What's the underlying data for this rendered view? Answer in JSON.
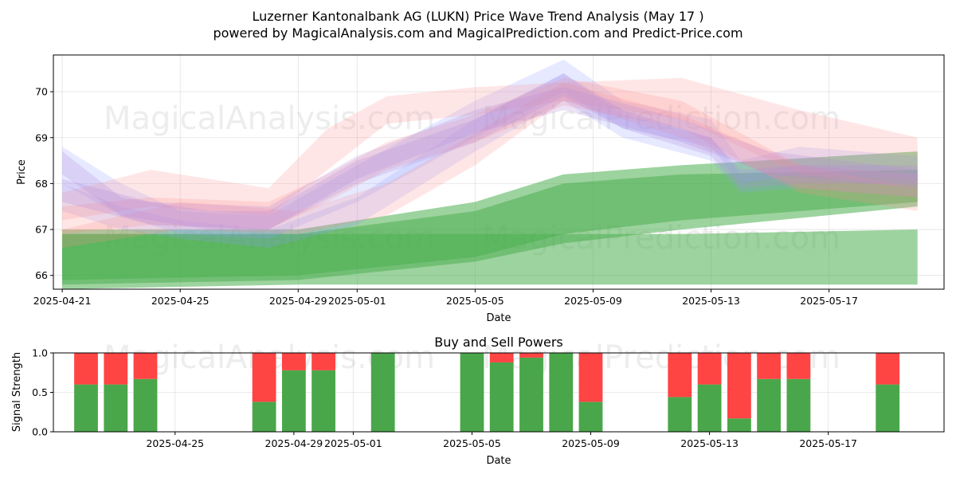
{
  "header": {
    "title": "Luzerner Kantonalbank AG (LUKN) Price Wave Trend Analysis (May 17 )",
    "subtitle": "powered by MagicalAnalysis.com and MagicalPrediction.com and Predict-Price.com"
  },
  "watermarks": [
    "MagicalAnalysis.com",
    "MagicalPrediction.com",
    "MagicalAnalysis.com",
    "MagicalPrediction.com",
    "MagicalAnalysis.com",
    "MagicalPrediction.com"
  ],
  "colors": {
    "buy": "#4aa64a",
    "sell": "#ff4444",
    "green_band": "#4caf50",
    "blue_band": "#8c9cff",
    "red_band": "#ff8c8c",
    "purple_band": "#b48cdc"
  },
  "chart_data": [
    {
      "type": "area",
      "title": "",
      "xlabel": "Date",
      "ylabel": "Price",
      "ylim": [
        65.7,
        70.8
      ],
      "xlim": [
        "2025-04-20.7",
        "2025-05-20.9"
      ],
      "grid": true,
      "x_ticks": [
        "2025-04-21",
        "2025-04-25",
        "2025-04-29",
        "2025-05-01",
        "2025-05-05",
        "2025-05-09",
        "2025-05-13",
        "2025-05-17"
      ],
      "y_ticks": [
        "66",
        "67",
        "68",
        "69",
        "70"
      ],
      "series": [
        {
          "color": "green",
          "x": [
            "2025-04-21",
            "2025-04-29",
            "2025-05-05",
            "2025-05-08",
            "2025-05-12",
            "2025-05-20"
          ],
          "low": [
            65.9,
            66.0,
            66.4,
            66.9,
            67.2,
            67.6
          ],
          "high": [
            67.0,
            67.0,
            67.6,
            68.2,
            68.4,
            68.7
          ]
        },
        {
          "color": "green",
          "x": [
            "2025-04-21",
            "2025-04-29",
            "2025-05-05",
            "2025-05-08",
            "2025-05-12",
            "2025-05-20"
          ],
          "low": [
            65.8,
            65.9,
            66.3,
            66.7,
            67.0,
            67.5
          ],
          "high": [
            66.9,
            66.9,
            67.4,
            68.0,
            68.2,
            68.3
          ]
        },
        {
          "color": "green",
          "x": [
            "2025-04-21",
            "2025-04-29",
            "2025-05-05",
            "2025-05-08",
            "2025-05-12",
            "2025-05-20"
          ],
          "low": [
            65.7,
            65.8,
            65.8,
            65.8,
            65.8,
            65.8
          ],
          "high": [
            66.9,
            66.9,
            66.9,
            66.9,
            66.9,
            67.0
          ]
        },
        {
          "color": "blue",
          "x": [
            "2025-04-21",
            "2025-04-23",
            "2025-04-25",
            "2025-04-28",
            "2025-05-01",
            "2025-05-05",
            "2025-05-08",
            "2025-05-10",
            "2025-05-13",
            "2025-05-14",
            "2025-05-16",
            "2025-05-20"
          ],
          "low": [
            68.0,
            67.3,
            66.9,
            66.8,
            67.6,
            69.0,
            70.0,
            69.2,
            68.8,
            68.0,
            68.2,
            68.1
          ],
          "high": [
            68.8,
            68.0,
            67.4,
            67.3,
            68.4,
            69.8,
            70.7,
            69.8,
            69.4,
            68.5,
            68.8,
            68.6
          ]
        },
        {
          "color": "blue",
          "x": [
            "2025-04-21",
            "2025-04-23",
            "2025-04-25",
            "2025-04-28",
            "2025-05-01",
            "2025-05-05",
            "2025-05-08",
            "2025-05-10",
            "2025-05-13",
            "2025-05-14",
            "2025-05-16",
            "2025-05-20"
          ],
          "low": [
            67.4,
            67.0,
            66.8,
            66.6,
            67.1,
            68.7,
            69.8,
            69.0,
            68.5,
            67.8,
            67.9,
            67.7
          ],
          "high": [
            68.0,
            67.5,
            67.2,
            67.0,
            67.7,
            69.4,
            70.4,
            69.5,
            69.0,
            68.2,
            68.4,
            68.2
          ]
        },
        {
          "color": "red",
          "x": [
            "2025-04-21",
            "2025-04-24",
            "2025-04-28",
            "2025-04-30",
            "2025-05-02",
            "2025-05-05",
            "2025-05-08",
            "2025-05-12",
            "2025-05-16",
            "2025-05-20"
          ],
          "low": [
            67.2,
            67.5,
            67.3,
            68.3,
            69.3,
            69.5,
            69.8,
            69.4,
            68.2,
            67.9
          ],
          "high": [
            67.8,
            68.3,
            67.9,
            69.2,
            69.9,
            70.1,
            70.2,
            70.3,
            69.6,
            69.0
          ]
        },
        {
          "color": "red",
          "x": [
            "2025-04-21",
            "2025-04-24",
            "2025-04-28",
            "2025-04-30",
            "2025-05-02",
            "2025-05-05",
            "2025-05-08",
            "2025-05-12",
            "2025-05-16",
            "2025-05-20"
          ],
          "low": [
            66.9,
            67.1,
            67.0,
            67.6,
            68.3,
            68.9,
            69.7,
            69.2,
            67.8,
            67.4
          ],
          "high": [
            67.5,
            67.7,
            67.6,
            68.2,
            68.9,
            69.5,
            70.3,
            69.8,
            68.4,
            67.9
          ]
        },
        {
          "color": "red",
          "x": [
            "2025-04-21",
            "2025-04-25",
            "2025-04-29",
            "2025-05-02",
            "2025-05-05",
            "2025-05-08",
            "2025-05-12",
            "2025-05-16",
            "2025-05-20"
          ],
          "low": [
            66.6,
            67.0,
            66.9,
            67.3,
            68.4,
            69.8,
            69.0,
            67.9,
            67.7
          ],
          "high": [
            67.0,
            67.6,
            67.4,
            68.0,
            69.1,
            70.2,
            69.5,
            68.4,
            68.2
          ]
        },
        {
          "color": "purple",
          "x": [
            "2025-04-21",
            "2025-04-23",
            "2025-04-26",
            "2025-04-28",
            "2025-05-01",
            "2025-05-05",
            "2025-05-08",
            "2025-05-10",
            "2025-05-13",
            "2025-05-14",
            "2025-05-16",
            "2025-05-20"
          ],
          "low": [
            68.2,
            67.3,
            67.0,
            67.0,
            68.0,
            68.9,
            69.9,
            69.2,
            68.6,
            67.9,
            68.0,
            68.0
          ],
          "high": [
            68.7,
            67.7,
            67.4,
            67.4,
            68.5,
            69.4,
            70.4,
            69.6,
            69.0,
            68.3,
            68.4,
            68.4
          ]
        },
        {
          "color": "purple",
          "x": [
            "2025-04-21",
            "2025-04-24",
            "2025-04-28",
            "2025-05-01",
            "2025-05-05",
            "2025-05-08",
            "2025-05-12",
            "2025-05-15",
            "2025-05-20"
          ],
          "low": [
            67.6,
            67.1,
            67.0,
            68.1,
            69.1,
            69.6,
            68.9,
            68.2,
            67.9
          ],
          "high": [
            68.1,
            67.6,
            67.5,
            68.6,
            69.6,
            70.1,
            69.4,
            68.7,
            68.3
          ]
        }
      ]
    },
    {
      "type": "bar",
      "title": "Buy and Sell Powers",
      "xlabel": "Date",
      "ylabel": "Signal Strength",
      "ylim": [
        0,
        1
      ],
      "xlim": [
        "2025-04-20.9",
        "2025-05-20.9"
      ],
      "grid": true,
      "x_ticks": [
        "2025-04-25",
        "2025-04-29",
        "2025-05-01",
        "2025-05-05",
        "2025-05-09",
        "2025-05-13",
        "2025-05-17"
      ],
      "y_ticks": [
        "0.0",
        "0.5",
        "1.0"
      ],
      "categories": [
        "2025-04-22",
        "2025-04-23",
        "2025-04-24",
        "2025-04-28",
        "2025-04-29",
        "2025-04-30",
        "2025-05-02",
        "2025-05-05",
        "2025-05-06",
        "2025-05-07",
        "2025-05-08",
        "2025-05-09",
        "2025-05-12",
        "2025-05-13",
        "2025-05-14",
        "2025-05-15",
        "2025-05-16",
        "2025-05-19"
      ],
      "series": [
        {
          "name": "buy",
          "values": [
            0.6,
            0.6,
            0.67,
            0.38,
            0.78,
            0.78,
            1.0,
            1.0,
            0.88,
            0.94,
            1.0,
            0.38,
            0.44,
            0.6,
            0.17,
            0.67,
            0.67,
            0.6
          ]
        },
        {
          "name": "sell",
          "values": [
            0.4,
            0.4,
            0.33,
            0.62,
            0.22,
            0.22,
            0.0,
            0.0,
            0.12,
            0.06,
            0.0,
            0.62,
            0.56,
            0.4,
            0.83,
            0.33,
            0.33,
            0.4
          ]
        }
      ]
    }
  ]
}
